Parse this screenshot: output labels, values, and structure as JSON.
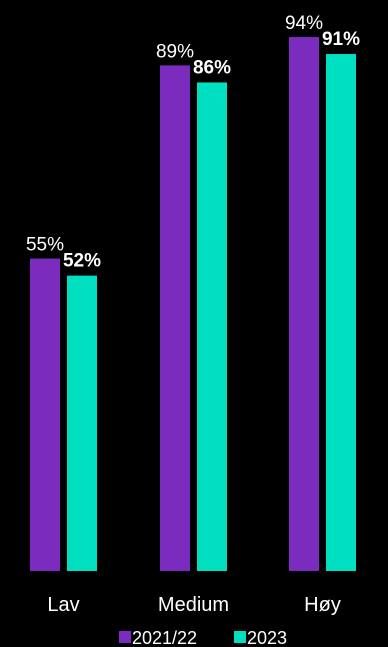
{
  "chart_data": {
    "type": "bar",
    "categories": [
      "Lav",
      "Medium",
      "Høy"
    ],
    "series": [
      {
        "name": "2021/22",
        "values": [
          55,
          89,
          94
        ],
        "labels": [
          "55%",
          "89%",
          "94%"
        ],
        "color": "#7b2cbf",
        "label_weight": "normal"
      },
      {
        "name": "2023",
        "values": [
          52,
          86,
          91
        ],
        "labels": [
          "52%",
          "86%",
          "91%"
        ],
        "color": "#00e0c0",
        "label_weight": "bold"
      }
    ],
    "ylim": [
      0,
      100
    ],
    "grid": false,
    "legend": "bottom",
    "title": "",
    "xlabel": "",
    "ylabel": ""
  }
}
